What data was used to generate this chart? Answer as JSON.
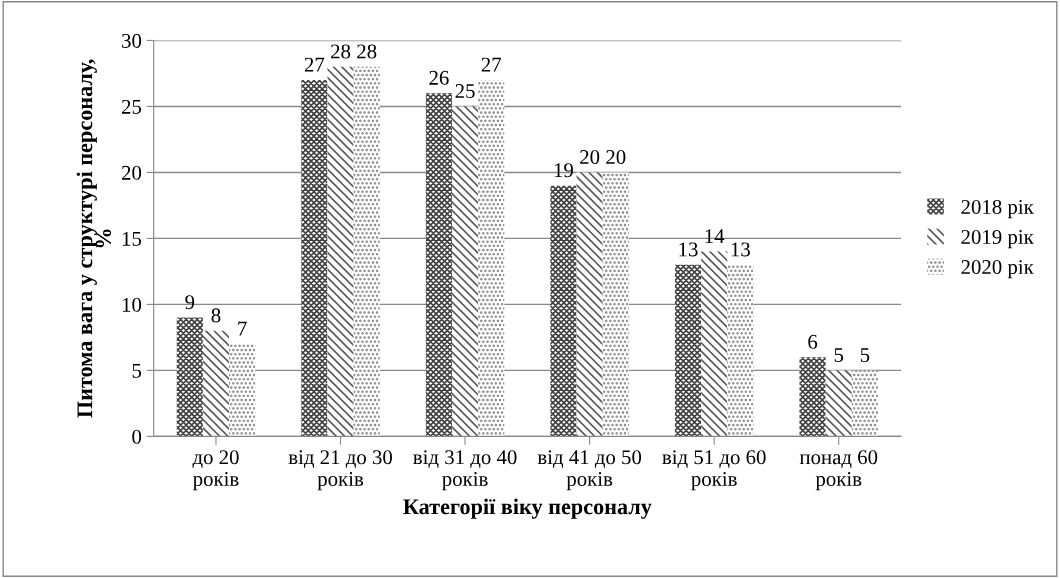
{
  "chart_data": {
    "type": "bar",
    "xlabel": "Категорії віку персоналу",
    "ylabel": "Питома вага у структурі персоналу, %",
    "categories": [
      "до 20 років",
      "від 21 до 30 років",
      "від 31 до 40 років",
      "від 41 до 50 років",
      "від 51 до 60 років",
      "понад 60 років"
    ],
    "series": [
      {
        "name": "2018 рік",
        "color": "#404040",
        "values": [
          9,
          27,
          26,
          19,
          13,
          6
        ]
      },
      {
        "name": "2019 рік",
        "color": "#595959",
        "values": [
          8,
          28,
          25,
          20,
          14,
          5
        ]
      },
      {
        "name": "2020 рік",
        "color": "#808080",
        "values": [
          7,
          28,
          27,
          20,
          13,
          5
        ]
      }
    ],
    "ylim": [
      0,
      30
    ],
    "yticks": [
      0,
      5,
      10,
      15,
      20,
      25,
      30
    ],
    "grid": "y",
    "legend": "right",
    "data_labels": true
  }
}
